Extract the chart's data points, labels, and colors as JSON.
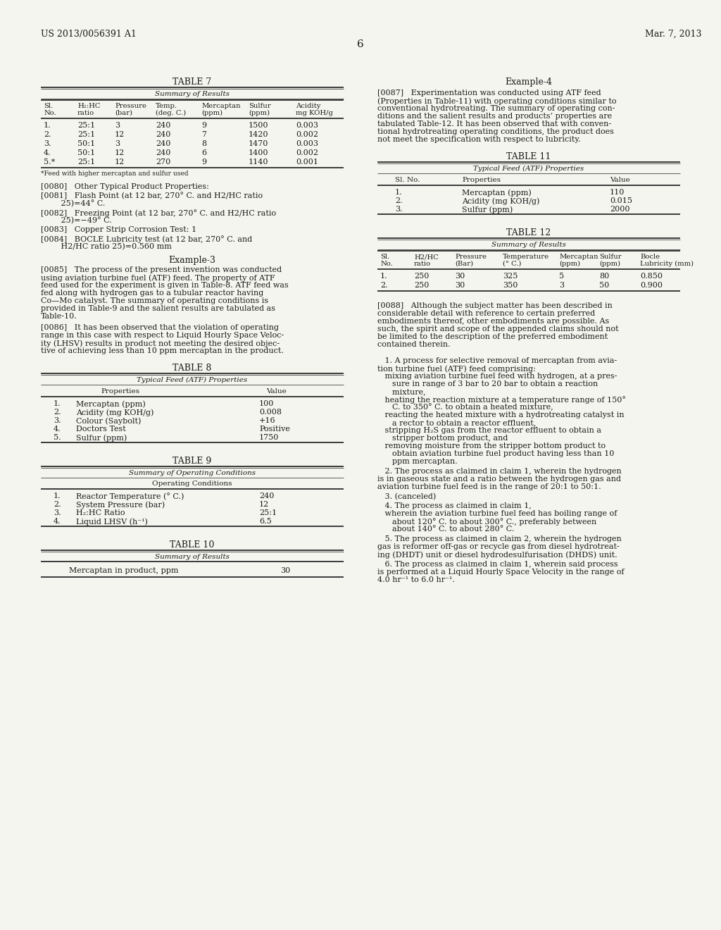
{
  "header_left": "US 2013/0056391 A1",
  "header_right": "Mar. 7, 2013",
  "page_number": "6",
  "bg_color": "#f5f5f0",
  "text_color": "#1a1a1a",
  "table7_title": "TABLE 7",
  "table7_subtitle": "Summary of Results",
  "table7_col_headers_line1": [
    "Sl.",
    "H₂:HC",
    "Pressure",
    "Temp.",
    "Mercaptan",
    "Sulfur",
    "Acidity"
  ],
  "table7_col_headers_line2": [
    "No.",
    "ratio",
    "(bar)",
    "(deg. C.)",
    "(ppm)",
    "(ppm)",
    "mg KOH/g"
  ],
  "table7_rows": [
    [
      "1.",
      "25:1",
      "3",
      "240",
      "9",
      "1500",
      "0.003"
    ],
    [
      "2.",
      "25:1",
      "12",
      "240",
      "7",
      "1420",
      "0.002"
    ],
    [
      "3.",
      "50:1",
      "3",
      "240",
      "8",
      "1470",
      "0.003"
    ],
    [
      "4.",
      "50:1",
      "12",
      "240",
      "6",
      "1400",
      "0.002"
    ],
    [
      "5.*",
      "25:1",
      "12",
      "270",
      "9",
      "1140",
      "0.001"
    ]
  ],
  "table7_footnote": "*Feed with higher mercaptan and sulfur used",
  "para0080": "[0080]   Other Typical Product Properties:",
  "para0081_1": "[0081]   Flash Point (at 12 bar, 270° C. and H2/HC ratio",
  "para0081_2": "   25)=44° C.",
  "para0082_1": "[0082]   Freezing Point (at 12 bar, 270° C. and H2/HC ratio",
  "para0082_2": "   25)=−49° C.",
  "para0083": "[0083]   Copper Strip Corrosion Test: 1",
  "para0084_1": "[0084]   BOCLE Lubricity test (at 12 bar, 270° C. and",
  "para0084_2": "   H2/HC ratio 25)=0.560 mm",
  "example3_title": "Example-3",
  "para0085": [
    "[0085]   The process of the present invention was conducted",
    "using aviation turbine fuel (ATF) feed. The property of ATF",
    "feed used for the experiment is given in Table-8. ATF feed was",
    "fed along with hydrogen gas to a tubular reactor having",
    "Co—Mo catalyst. The summary of operating conditions is",
    "provided in Table-9 and the salient results are tabulated as",
    "Table-10."
  ],
  "para0086": [
    "[0086]   It has been observed that the violation of operating",
    "range in this case with respect to Liquid Hourly Space Veloc-",
    "ity (LHSV) results in product not meeting the desired objec-",
    "tive of achieving less than 10 ppm mercaptan in the product."
  ],
  "table8_title": "TABLE 8",
  "table8_subtitle": "Typical Feed (ATF) Properties",
  "table8_col1": "Properties",
  "table8_col2": "Value",
  "table8_rows": [
    [
      "1.",
      "Mercaptan (ppm)",
      "100"
    ],
    [
      "2.",
      "Acidity (mg KOH/g)",
      "0.008"
    ],
    [
      "3.",
      "Colour (Saybolt)",
      "+16"
    ],
    [
      "4.",
      "Doctors Test",
      "Positive"
    ],
    [
      "5.",
      "Sulfur (ppm)",
      "1750"
    ]
  ],
  "table9_title": "TABLE 9",
  "table9_subtitle": "Summary of Operating Conditions",
  "table9_inner_subtitle": "Operating Conditions",
  "table9_rows": [
    [
      "1.",
      "Reactor Temperature (° C.)",
      "240"
    ],
    [
      "2.",
      "System Pressure (bar)",
      "12"
    ],
    [
      "3.",
      "H₂:HC Ratio",
      "25:1"
    ],
    [
      "4.",
      "Liquid LHSV (h⁻¹)",
      "6.5"
    ]
  ],
  "table10_title": "TABLE 10",
  "table10_subtitle": "Summary of Results",
  "table10_row": [
    "Mercaptan in product, ppm",
    "30"
  ],
  "example4_title": "Example-4",
  "para0087": [
    "[0087]   Experimentation was conducted using ATF feed",
    "(Properties in Table-11) with operating conditions similar to",
    "conventional hydrotreating. The summary of operating con-",
    "ditions and the salient results and products’ properties are",
    "tabulated Table-12. It has been observed that with conven-",
    "tional hydrotreating operating conditions, the product does",
    "not meet the specification with respect to lubricity."
  ],
  "table11_title": "TABLE 11",
  "table11_subtitle": "Typical Feed (ATF) Properties",
  "table11_col1": "Sl. No.",
  "table11_col2": "Properties",
  "table11_col3": "Value",
  "table11_rows": [
    [
      "1.",
      "Mercaptan (ppm)",
      "110"
    ],
    [
      "2.",
      "Acidity (mg KOH/g)",
      "0.015"
    ],
    [
      "3.",
      "Sulfur (ppm)",
      "2000"
    ]
  ],
  "table12_title": "TABLE 12",
  "table12_subtitle": "Summary of Results",
  "table12_col_headers_line1": [
    "Sl.",
    "H2/HC",
    "Pressure",
    "Temperature",
    "Mercaptan",
    "Sulfur",
    "Bocle"
  ],
  "table12_col_headers_line2": [
    "No.",
    "ratio",
    "(Bar)",
    "(° C.)",
    "(ppm)",
    "(ppm)",
    "Lubricity (mm)"
  ],
  "table12_rows": [
    [
      "1.",
      "250",
      "30",
      "325",
      "5",
      "80",
      "0.850"
    ],
    [
      "2.",
      "250",
      "30",
      "350",
      "3",
      "50",
      "0.900"
    ]
  ],
  "para0088": [
    "[0088]   Although the subject matter has been described in",
    "considerable detail with reference to certain preferred",
    "embodiments thereof, other embodiments are possible. As",
    "such, the spirit and scope of the appended claims should not",
    "be limited to the description of the preferred embodiment",
    "contained therein."
  ],
  "claim1_head": [
    "   1. A process for selective removal of mercaptan from avia-",
    "tion turbine fuel (ATF) feed comprising:"
  ],
  "claim1_a": [
    "   mixing aviation turbine fuel feed with hydrogen, at a pres-",
    "      sure in range of 3 bar to 20 bar to obtain a reaction",
    "      mixture,"
  ],
  "claim1_b": [
    "   heating the reaction mixture at a temperature range of 150°",
    "      C. to 350° C. to obtain a heated mixture,"
  ],
  "claim1_c": [
    "   reacting the heated mixture with a hydrotreating catalyst in",
    "      a rector to obtain a reactor effluent,"
  ],
  "claim1_d": [
    "   stripping H₂S gas from the reactor effluent to obtain a",
    "      stripper bottom product, and"
  ],
  "claim1_e": [
    "   removing moisture from the stripper bottom product to",
    "      obtain aviation turbine fuel product having less than 10",
    "      ppm mercaptan."
  ],
  "claim2": [
    "   2. The process as claimed in claim 1, wherein the hydrogen",
    "is in gaseous state and a ratio between the hydrogen gas and",
    "aviation turbine fuel feed is in the range of 20:1 to 50:1."
  ],
  "claim3": "   3. (canceled)",
  "claim4a": "   4. The process as claimed in claim 1,",
  "claim4b": [
    "   wherein the aviation turbine fuel feed has boiling range of",
    "      about 120° C. to about 300° C., preferably between",
    "      about 140° C. to about 280° C."
  ],
  "claim5": [
    "   5. The process as claimed in claim 2, wherein the hydrogen",
    "gas is reformer off-gas or recycle gas from diesel hydrotreat-",
    "ing (DHDT) unit or diesel hydrodesulfurisation (DHDS) unit."
  ],
  "claim6": [
    "   6. The process as claimed in claim 1, wherein said process",
    "is performed at a Liquid Hourly Space Velocity in the range of",
    "4.0 hr⁻¹ to 6.0 hr⁻¹."
  ]
}
